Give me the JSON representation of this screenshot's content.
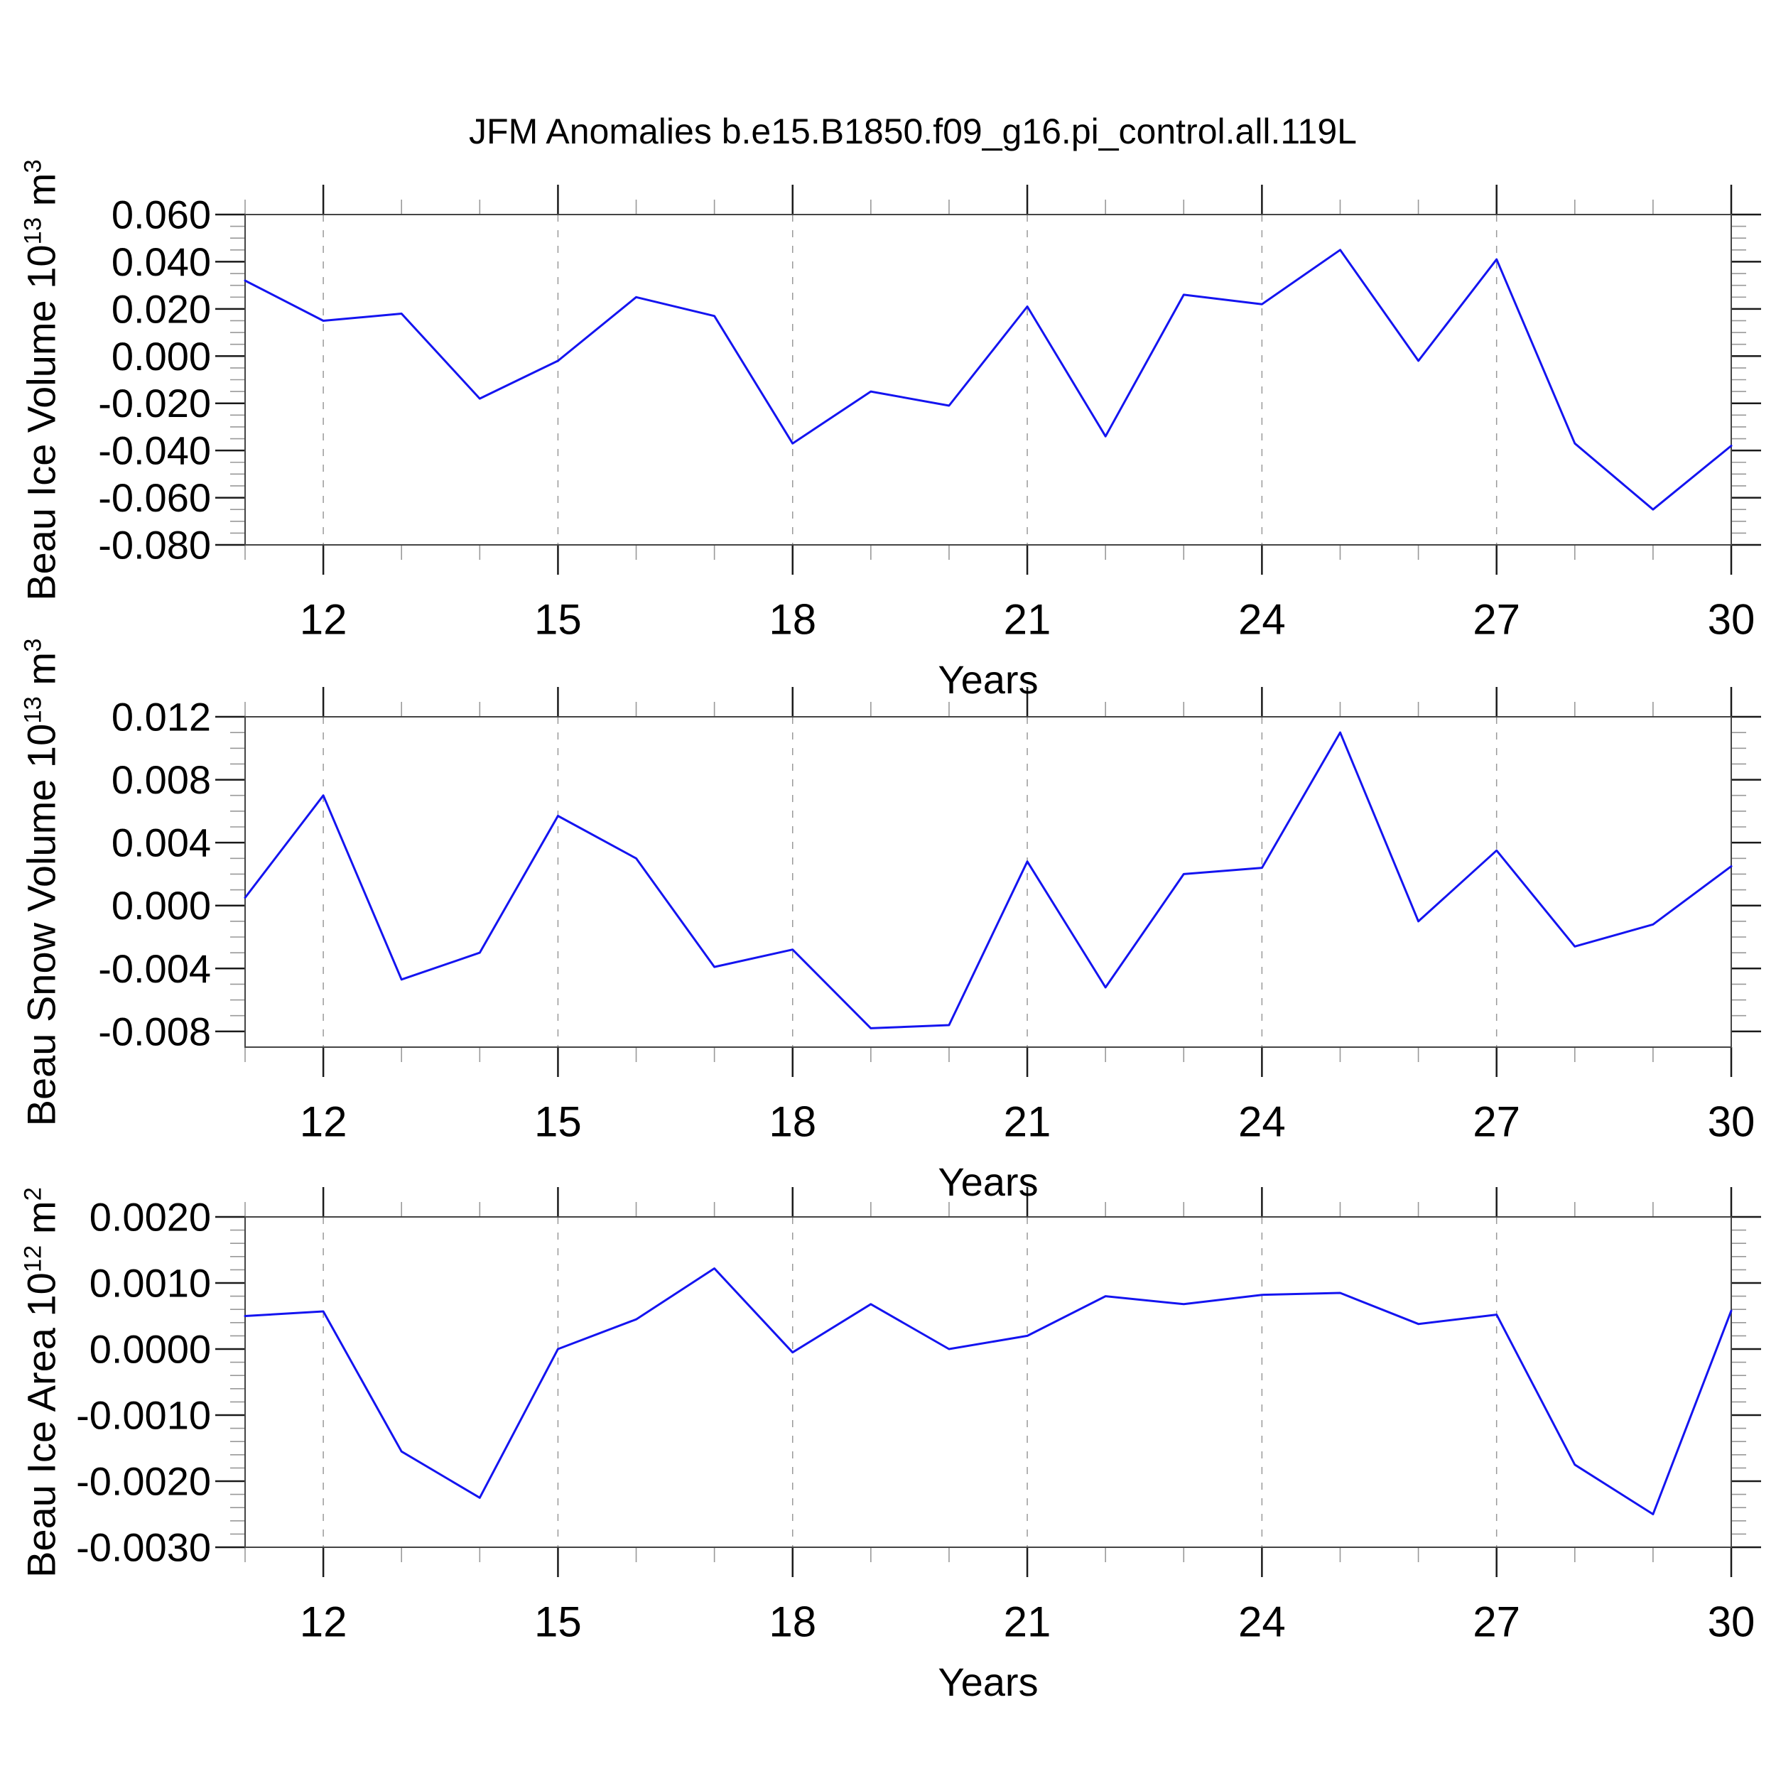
{
  "title": "JFM Anomalies b.e15.B1850.f09_g16.pi_control.all.119L",
  "colors": {
    "line": "#1414f0",
    "axis": "#444444",
    "major_tick": "#1a1a1a",
    "minor_tick": "#999999",
    "grid": "#999999",
    "text": "#000000"
  },
  "chart_data": [
    {
      "type": "line",
      "panel": "top",
      "xlabel": "Years",
      "ylabel": "Beau Ice Volume 10^13 m^3",
      "x": [
        11,
        12,
        13,
        14,
        15,
        16,
        17,
        18,
        19,
        20,
        21,
        22,
        23,
        24,
        25,
        26,
        27,
        28,
        29,
        30
      ],
      "values": [
        0.032,
        0.015,
        0.018,
        -0.018,
        -0.002,
        0.025,
        0.017,
        -0.037,
        -0.015,
        -0.021,
        0.021,
        -0.034,
        0.026,
        0.022,
        0.045,
        -0.002,
        0.041,
        -0.037,
        -0.065,
        -0.038
      ],
      "xlim": [
        11,
        30
      ],
      "ylim": [
        -0.08,
        0.06
      ],
      "ytick_step": 0.02,
      "yminor_step": 0.005,
      "ydecimals": 3,
      "xticks_labeled": [
        12,
        15,
        18,
        21,
        24,
        27,
        30
      ],
      "xminor_every": 1,
      "grid_x": [
        12,
        15,
        18,
        21,
        24,
        27
      ],
      "grid": "vertical-dashed"
    },
    {
      "type": "line",
      "panel": "middle",
      "xlabel": "Years",
      "ylabel": "Beau Snow Volume 10^13 m^3",
      "x": [
        11,
        12,
        13,
        14,
        15,
        16,
        17,
        18,
        19,
        20,
        21,
        22,
        23,
        24,
        25,
        26,
        27,
        28,
        29,
        30
      ],
      "values": [
        0.0005,
        0.007,
        -0.0047,
        -0.003,
        0.0057,
        0.003,
        -0.0039,
        -0.0028,
        -0.0078,
        -0.0076,
        0.0028,
        -0.0052,
        0.002,
        0.0024,
        0.011,
        -0.001,
        0.0035,
        -0.0026,
        -0.0012,
        0.0025
      ],
      "xlim": [
        11,
        30
      ],
      "ylim": [
        -0.009,
        0.012
      ],
      "ytick_step": 0.004,
      "yminor_step": 0.001,
      "ydecimals": 3,
      "xticks_labeled": [
        12,
        15,
        18,
        21,
        24,
        27,
        30
      ],
      "xminor_every": 1,
      "grid_x": [
        12,
        15,
        18,
        21,
        24,
        27
      ],
      "grid": "vertical-dashed"
    },
    {
      "type": "line",
      "panel": "bottom",
      "xlabel": "Years",
      "ylabel": "Beau Ice Area 10^12 m^2",
      "x": [
        11,
        12,
        13,
        14,
        15,
        16,
        17,
        18,
        19,
        20,
        21,
        22,
        23,
        24,
        25,
        26,
        27,
        28,
        29,
        30
      ],
      "values": [
        0.0005,
        0.00057,
        -0.00155,
        -0.00225,
        0.0,
        0.00045,
        0.00122,
        -5e-05,
        0.00068,
        0.0,
        0.0002,
        0.0008,
        0.00068,
        0.00082,
        0.00085,
        0.00038,
        0.00052,
        -0.00175,
        -0.0025,
        0.00058
      ],
      "xlim": [
        11,
        30
      ],
      "ylim": [
        -0.003,
        0.002
      ],
      "ytick_step": 0.001,
      "yminor_step": 0.0002,
      "ydecimals": 4,
      "xticks_labeled": [
        12,
        15,
        18,
        21,
        24,
        27,
        30
      ],
      "xminor_every": 1,
      "grid_x": [
        12,
        15,
        18,
        21,
        24,
        27
      ],
      "grid": "vertical-dashed"
    }
  ]
}
